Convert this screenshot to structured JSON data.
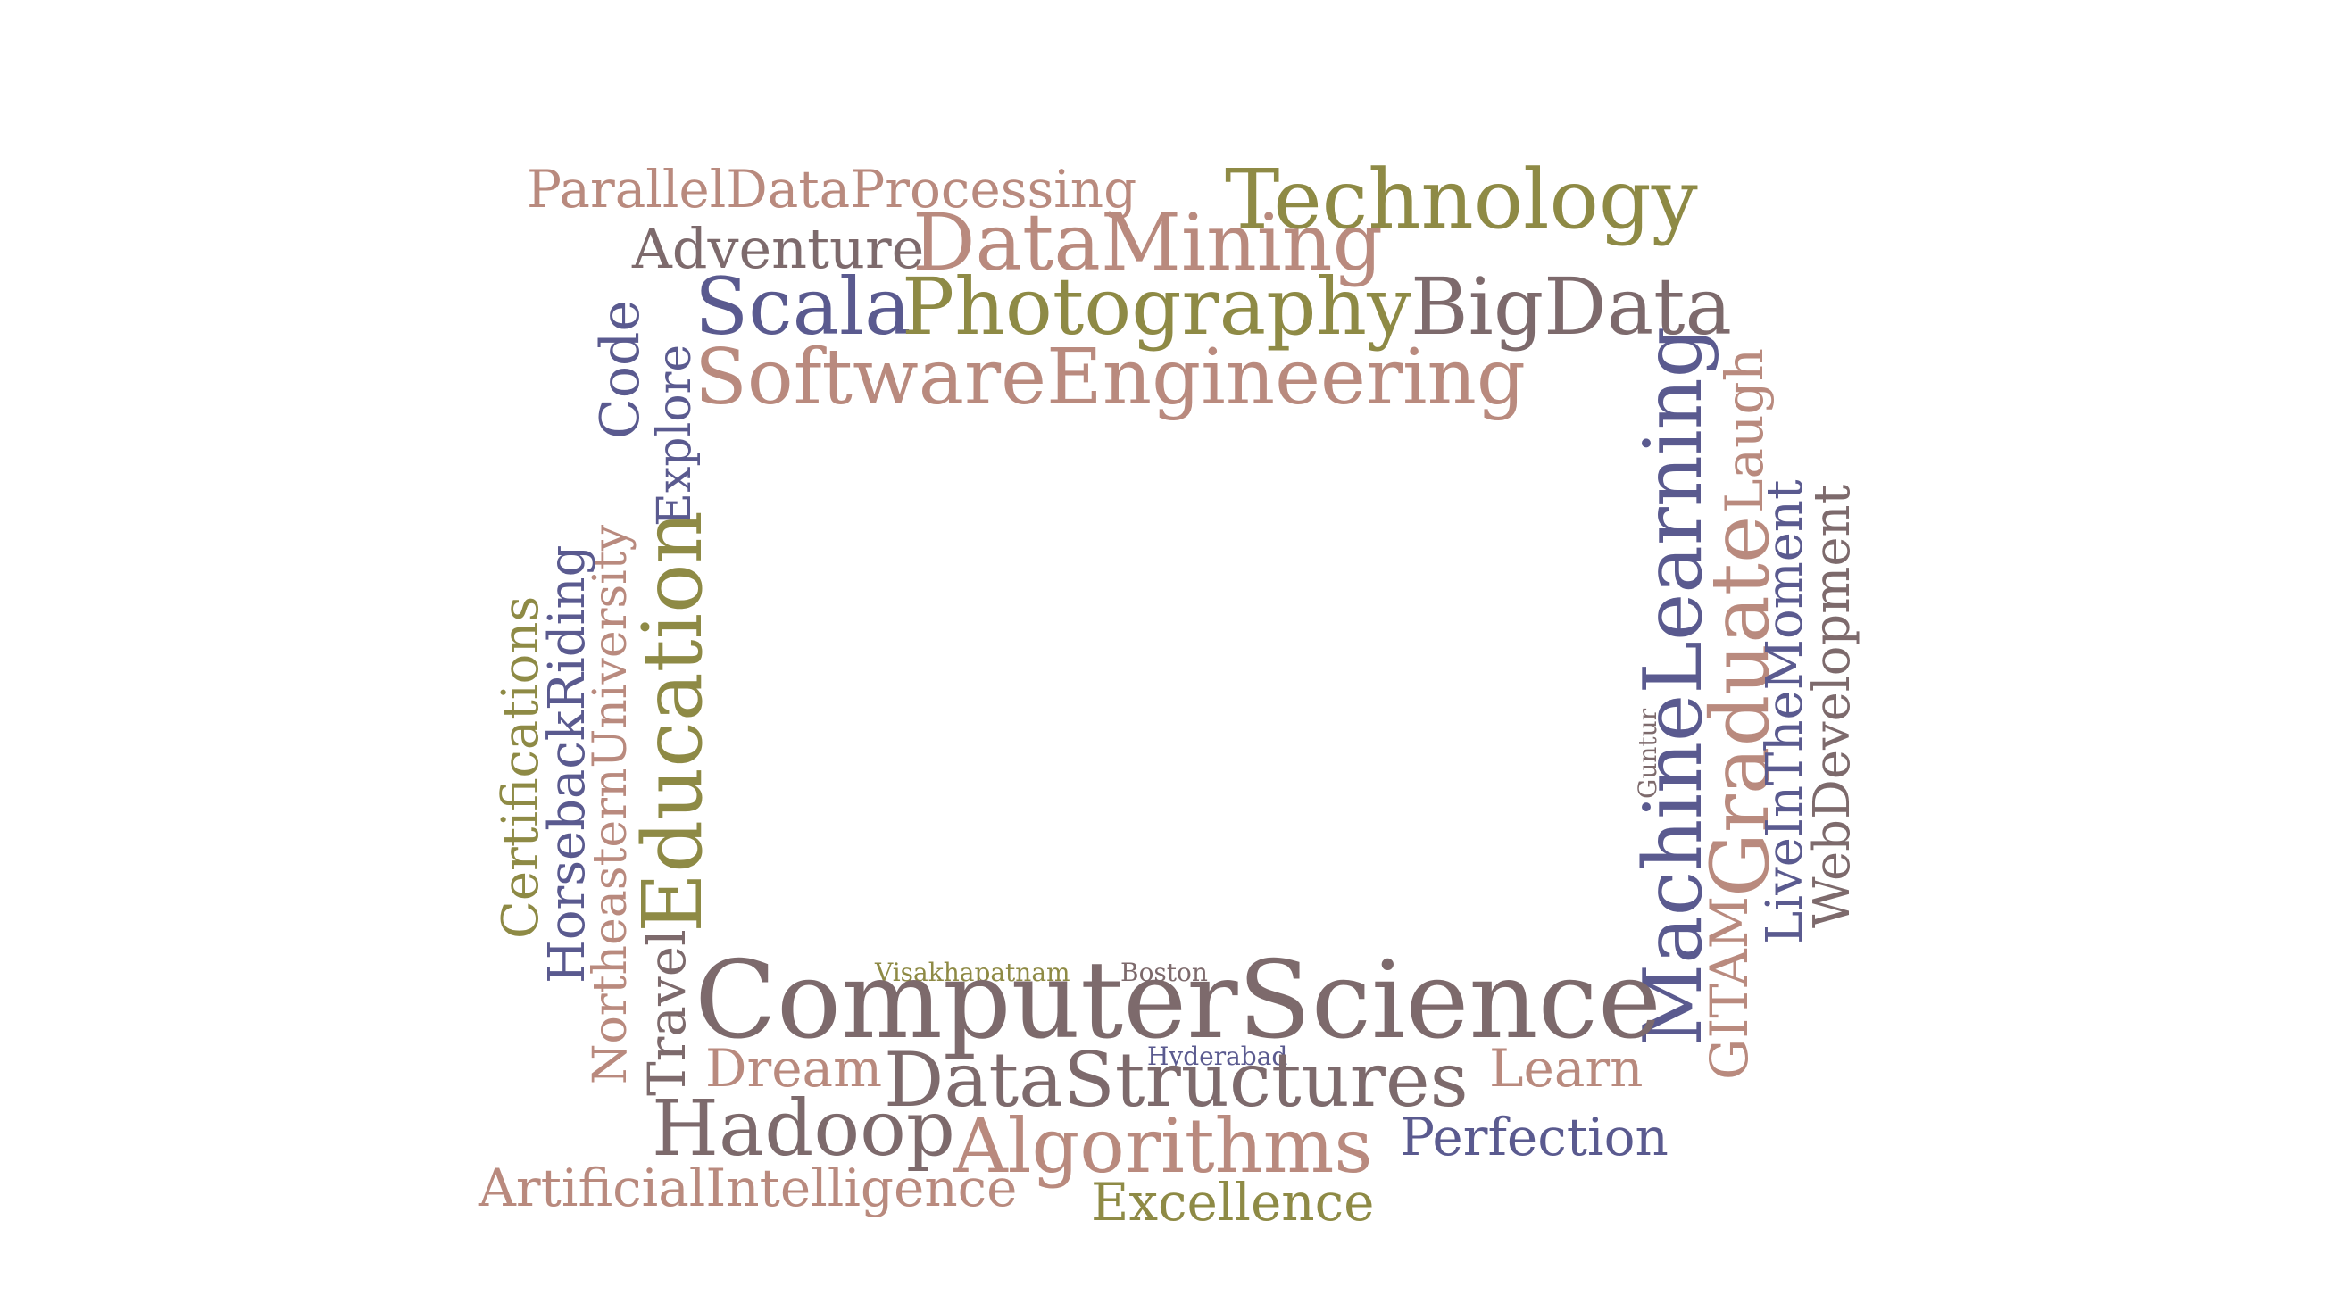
{
  "words": {
    "parallel_data_processing": "ParallelDataProcessing",
    "technology": "Technology",
    "adventure": "Adventure",
    "data_mining": "DataMining",
    "scala": "Scala",
    "photography": "Photography",
    "big_data": "BigData",
    "software_engineering": "SoftwareEngineering",
    "code": "Code",
    "explore": "Explore",
    "northeastern_university": "NortheasternUniversity",
    "horseback_riding": "HorsebackRiding",
    "certifications": "Certifications",
    "education": "Education",
    "travel": "Travel",
    "machine_learning": "MachineLearning",
    "laugh": "Laugh",
    "graduate": "Graduate",
    "live_in_the_moment": "LiveInTheMoment",
    "web_development": "WebDevelopment",
    "guntur": "Guntur",
    "gitam": "GITAM",
    "visakhapatnam": "Visakhapatnam",
    "boston": "Boston",
    "computer_science": "ComputerScience",
    "dream": "Dream",
    "hyderabad": "Hyderabad",
    "data_structures": "DataStructures",
    "learn": "Learn",
    "hadoop": "Hadoop",
    "algorithms": "Algorithms",
    "perfection": "Perfection",
    "artificial_intelligence": "ArtificialIntelligence",
    "excellence": "Excellence"
  },
  "palette": {
    "rose": "#b98a7e",
    "olive": "#8e8a45",
    "mauve": "#7d6a6c",
    "indigo": "#5a5a8f"
  }
}
